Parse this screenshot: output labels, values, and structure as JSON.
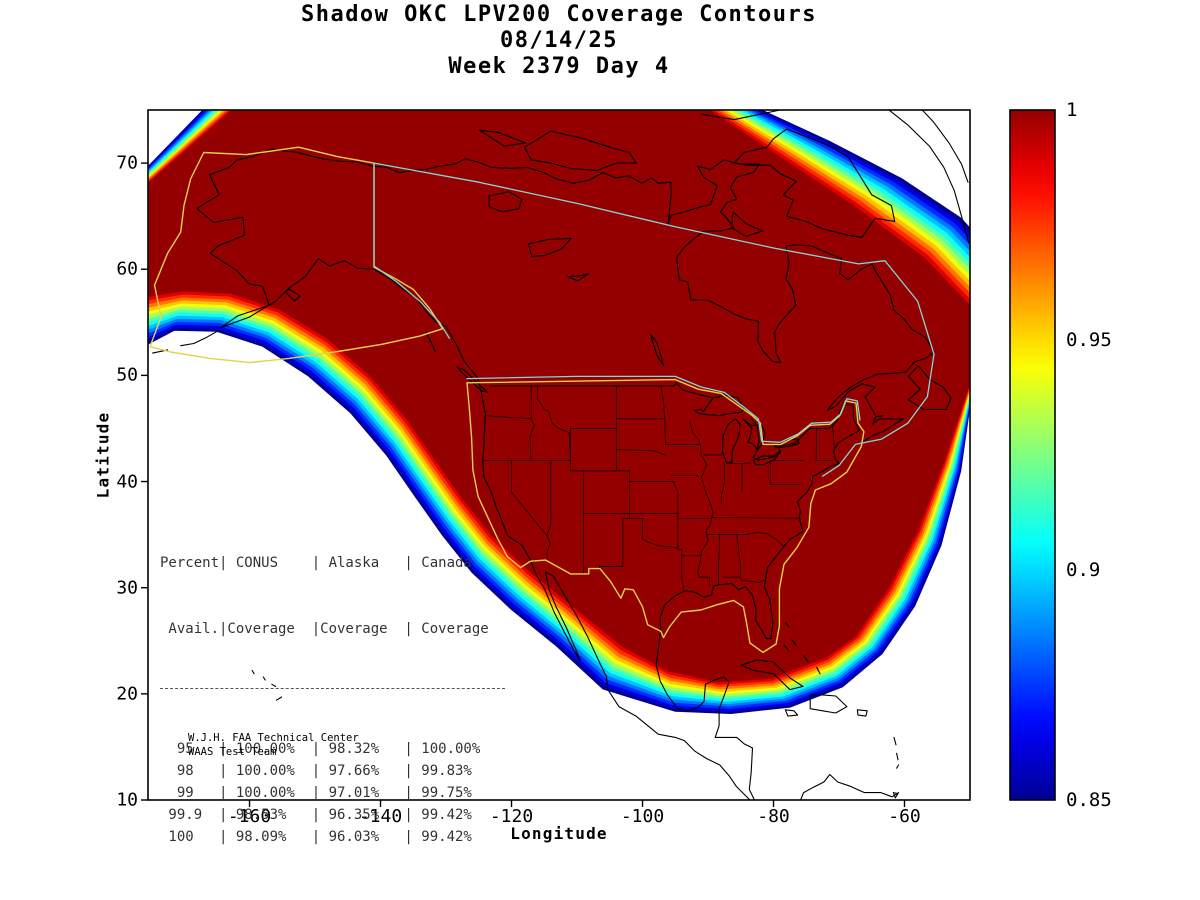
{
  "figure": {
    "title_line1": "Shadow OKC LPV200 Coverage Contours",
    "title_line2": "08/14/25",
    "title_line3": "Week 2379 Day 4"
  },
  "axes": {
    "xlabel": "Longitude",
    "ylabel": "Latitude",
    "x_tick_labels": [
      "-160",
      "-140",
      "-120",
      "-100",
      "-80",
      "-60"
    ],
    "x_tick_values": [
      -160,
      -140,
      -120,
      -100,
      -80,
      -60
    ],
    "y_tick_labels": [
      "10",
      "20",
      "30",
      "40",
      "50",
      "60",
      "70"
    ],
    "y_tick_values": [
      10,
      20,
      30,
      40,
      50,
      60,
      70
    ]
  },
  "colorbar": {
    "tick_labels": [
      "1",
      "0.95",
      "0.9",
      "0.85"
    ],
    "tick_values": [
      1,
      0.95,
      0.9,
      0.85
    ],
    "min": 0.85,
    "max": 1
  },
  "coverage_table": {
    "header_line1": "Percent| CONUS    | Alaska   | Canada",
    "header_line2": " Avail.|Coverage  |Coverage  | Coverage",
    "rows": [
      "  95   | 100.00%  | 98.32%   | 100.00%",
      "  98   | 100.00%  | 97.66%   | 99.83%",
      "  99   | 100.00%  | 97.01%   | 99.75%",
      " 99.9  | 98.53%   | 96.35%   | 99.42%",
      " 100   | 98.09%   | 96.03%   | 99.42%"
    ]
  },
  "credit_line1": "W.J.H. FAA Technical Center",
  "credit_line2": "WAAS Test Team",
  "chart_data": {
    "type": "heatmap",
    "title": "Shadow OKC LPV200 Coverage Contours",
    "date": "08/14/25",
    "gps_week": 2379,
    "gps_day": 4,
    "xlabel": "Longitude",
    "ylabel": "Latitude",
    "xlim": [
      -175,
      -50
    ],
    "ylim": [
      10,
      75
    ],
    "x_ticks": [
      -160,
      -140,
      -120,
      -100,
      -80,
      -60
    ],
    "y_ticks": [
      10,
      20,
      30,
      40,
      50,
      60,
      70
    ],
    "colormap": "jet",
    "value_range": [
      0.85,
      1.0
    ],
    "colorbar_ticks": [
      0.85,
      0.9,
      0.95,
      1
    ],
    "legend_position": "right-colorbar",
    "grid": false,
    "series_description": "LPV200 availability contours over North America: dark-red core (~1.0) covers CONUS, Alaska and most of Canada, grading through red, orange, yellow, green, cyan and blue bands down to 0.85 along the southwest Pacific, Gulf of Mexico/Caribbean and northeast Atlantic fringes; white = below 0.85 / no coverage",
    "availability_table": {
      "columns": [
        "Percent Avail.",
        "CONUS Coverage",
        "Alaska Coverage",
        "Canada Coverage"
      ],
      "rows": [
        [
          "95",
          "100.00%",
          "98.32%",
          "100.00%"
        ],
        [
          "98",
          "100.00%",
          "97.66%",
          "99.83%"
        ],
        [
          "99",
          "100.00%",
          "97.01%",
          "99.75%"
        ],
        [
          "99.9",
          "98.53%",
          "96.35%",
          "99.42%"
        ],
        [
          "100",
          "98.09%",
          "96.03%",
          "99.42%"
        ]
      ]
    }
  }
}
